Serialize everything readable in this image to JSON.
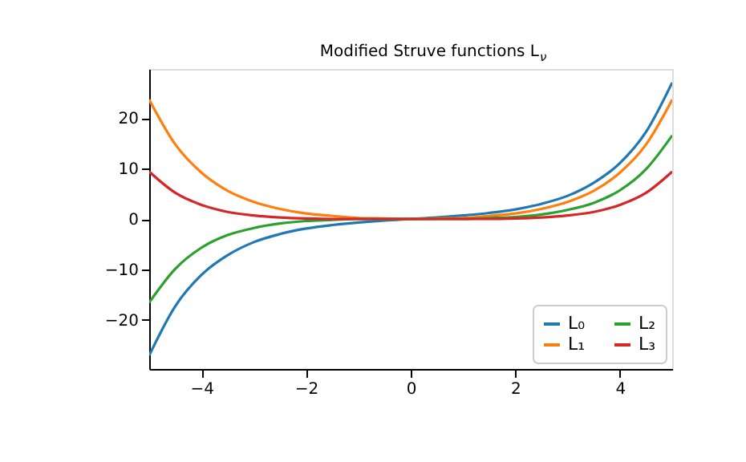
{
  "chart_data": {
    "type": "line",
    "title": "Modified Struve functions L$_{ν}$",
    "x": [
      -5,
      -4.5,
      -4,
      -3.5,
      -3,
      -2.5,
      -2,
      -1.5,
      -1,
      -0.5,
      0,
      0.5,
      1,
      1.5,
      2,
      2.5,
      3,
      3.5,
      4,
      4.5,
      5
    ],
    "series": [
      {
        "name": "L₀",
        "color": "#1f77b4",
        "values": [
          -27.1,
          -17.3,
          -11.1,
          -7.2,
          -4.6,
          -3.0,
          -1.9,
          -1.2,
          -0.7,
          -0.3,
          0,
          0.3,
          0.7,
          1.2,
          1.9,
          3.0,
          4.6,
          7.2,
          11.1,
          17.3,
          27.1
        ]
      },
      {
        "name": "L₁",
        "color": "#ff7f0e",
        "values": [
          23.7,
          14.8,
          9.2,
          5.6,
          3.4,
          2.0,
          1.1,
          0.6,
          0.2,
          0.1,
          0,
          0.1,
          0.2,
          0.6,
          1.1,
          2.0,
          3.4,
          5.6,
          9.2,
          14.8,
          23.7
        ]
      },
      {
        "name": "L₂",
        "color": "#2ca02c",
        "values": [
          -16.6,
          -9.9,
          -5.7,
          -3.2,
          -1.8,
          -0.9,
          -0.4,
          -0.2,
          0,
          0,
          0,
          0,
          0,
          0.2,
          0.4,
          0.9,
          1.8,
          3.2,
          5.7,
          9.9,
          16.6
        ]
      },
      {
        "name": "L₃",
        "color": "#d62728",
        "values": [
          9.4,
          5.2,
          2.8,
          1.4,
          0.7,
          0.3,
          0.1,
          0,
          0,
          0,
          0,
          0,
          0,
          0,
          0.1,
          0.3,
          0.7,
          1.4,
          2.8,
          5.2,
          9.4
        ]
      }
    ],
    "xlim": [
      -5,
      5
    ],
    "ylim": [
      -29.8,
      29.8
    ],
    "xticks": [
      -4,
      -2,
      0,
      2,
      4
    ],
    "yticks": [
      -20,
      -10,
      0,
      10,
      20
    ],
    "grid": false,
    "legend": "bottom right",
    "marker": "none",
    "line_style": "solid"
  }
}
